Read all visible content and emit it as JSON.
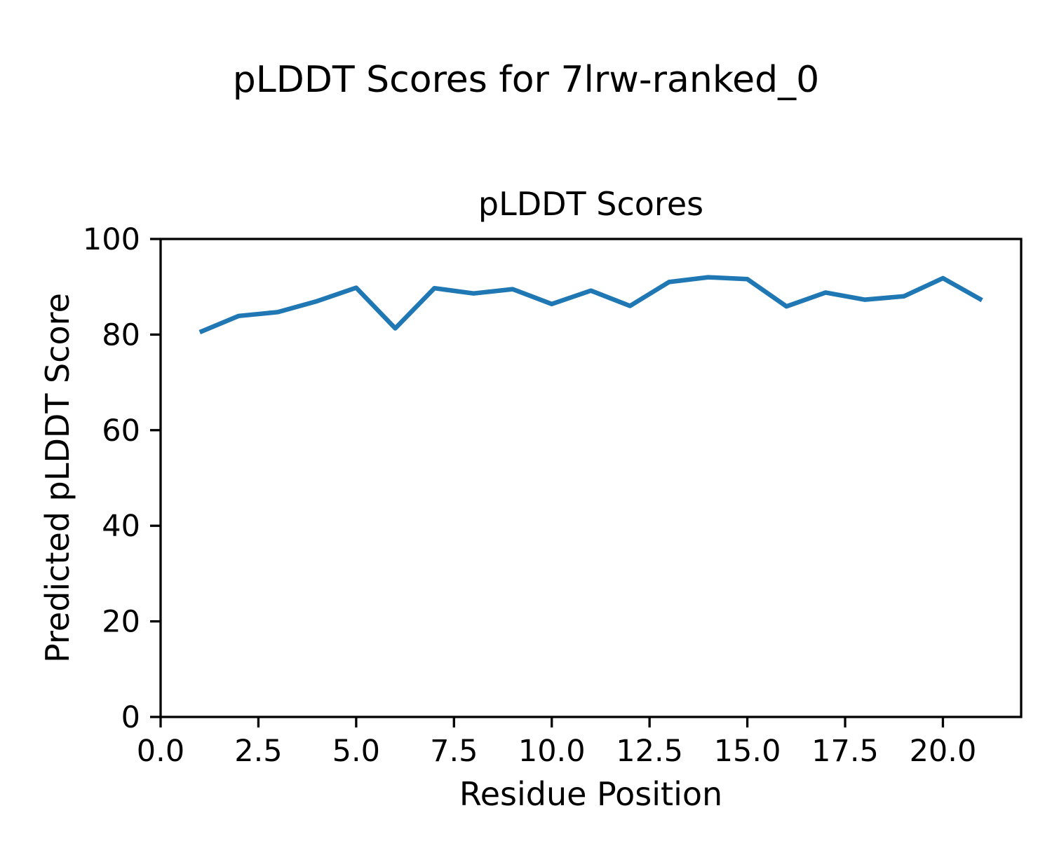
{
  "header": {
    "title": "pLDDT Scores for 7lrw-ranked_0"
  },
  "chart_data": {
    "type": "line",
    "title": "pLDDT Scores",
    "xlabel": "Residue Position",
    "ylabel": "Predicted pLDDT Score",
    "x": [
      1,
      2,
      3,
      4,
      5,
      6,
      7,
      8,
      9,
      10,
      11,
      12,
      13,
      14,
      15,
      16,
      17,
      18,
      19,
      20,
      21
    ],
    "y": [
      80.5,
      83.9,
      84.7,
      87.0,
      89.8,
      81.3,
      89.7,
      88.6,
      89.5,
      86.4,
      89.2,
      86.0,
      91.0,
      92.0,
      91.6,
      85.9,
      88.8,
      87.3,
      88.0,
      91.8,
      87.2
    ],
    "xlim": [
      0,
      22
    ],
    "ylim": [
      0,
      100
    ],
    "xticks": [
      0,
      2.5,
      5,
      7.5,
      10,
      12.5,
      15,
      17.5,
      20
    ],
    "xtick_labels": [
      "0.0",
      "2.5",
      "5.0",
      "7.5",
      "10.0",
      "12.5",
      "15.0",
      "17.5",
      "20.0"
    ],
    "yticks": [
      0,
      20,
      40,
      60,
      80,
      100
    ],
    "ytick_labels": [
      "0",
      "20",
      "40",
      "60",
      "80",
      "100"
    ],
    "line_color": "#1f77b4",
    "spine_color": "#000000",
    "grid": false,
    "legend": false
  }
}
